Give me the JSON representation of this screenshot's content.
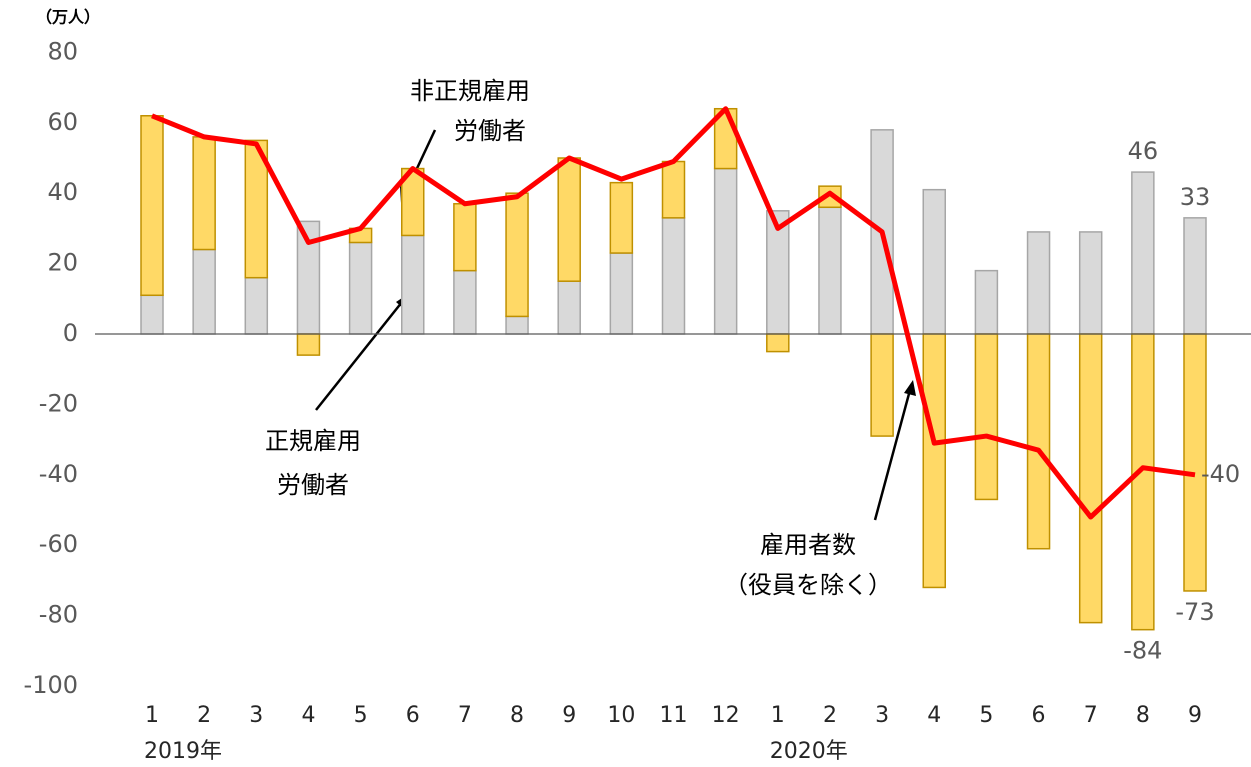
{
  "chart_data": {
    "type": "bar",
    "unit_label": "（万人）",
    "categories": [
      "1",
      "2",
      "3",
      "4",
      "5",
      "6",
      "7",
      "8",
      "9",
      "10",
      "11",
      "12",
      "1",
      "2",
      "3",
      "4",
      "5",
      "6",
      "7",
      "8",
      "9"
    ],
    "year_labels": [
      "2019年",
      "2020年"
    ],
    "ylim": [
      -100,
      80
    ],
    "yticks": [
      -100,
      -80,
      -60,
      -40,
      -20,
      0,
      20,
      40,
      60,
      80
    ],
    "stacked": true,
    "series": [
      {
        "name": [
          "正規雇用",
          "労働者"
        ],
        "type": "bar",
        "color": "#d9d9d9",
        "values": [
          11,
          24,
          16,
          32,
          26,
          28,
          18,
          5,
          15,
          23,
          33,
          47,
          35,
          36,
          58,
          41,
          18,
          29,
          29,
          46,
          33
        ],
        "value_labels": [
          null,
          null,
          null,
          null,
          null,
          null,
          null,
          null,
          null,
          null,
          null,
          null,
          null,
          null,
          null,
          null,
          null,
          null,
          null,
          "46",
          "33"
        ]
      },
      {
        "name": [
          "非正規雇用",
          "労働者"
        ],
        "type": "bar",
        "color": "#ffd966",
        "values": [
          51,
          32,
          39,
          -6,
          4,
          19,
          19,
          35,
          35,
          20,
          16,
          17,
          -5,
          6,
          -29,
          -72,
          -47,
          -61,
          -82,
          -84,
          -73
        ],
        "value_labels": [
          null,
          null,
          null,
          null,
          null,
          null,
          null,
          null,
          null,
          null,
          null,
          null,
          null,
          null,
          null,
          null,
          null,
          null,
          null,
          "-84",
          "-73"
        ]
      },
      {
        "name": [
          "雇用者数",
          "（役員を除く）"
        ],
        "type": "line",
        "color": "#ff0000",
        "values": [
          62,
          56,
          54,
          26,
          30,
          47,
          37,
          39,
          50,
          44,
          49,
          64,
          30,
          40,
          29,
          -31,
          -29,
          -33,
          -52,
          -38,
          -40
        ],
        "value_labels": [
          null,
          null,
          null,
          null,
          null,
          null,
          null,
          null,
          null,
          null,
          null,
          null,
          null,
          null,
          null,
          null,
          null,
          null,
          null,
          null,
          "-40"
        ]
      }
    ]
  }
}
